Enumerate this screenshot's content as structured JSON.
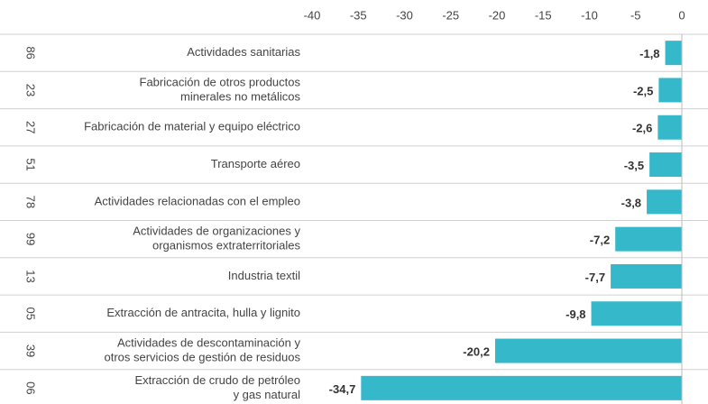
{
  "chart_data": {
    "type": "bar",
    "orientation": "horizontal",
    "codes": [
      "86",
      "23",
      "27",
      "51",
      "78",
      "99",
      "13",
      "05",
      "39",
      "06"
    ],
    "categories": [
      [
        "Actividades sanitarias"
      ],
      [
        "Fabricación de otros productos",
        "minerales no metálicos"
      ],
      [
        "Fabricación de material y equipo eléctrico"
      ],
      [
        "Transporte aéreo"
      ],
      [
        "Actividades relacionadas con el empleo"
      ],
      [
        "Actividades de organizaciones y",
        "organismos extraterritoriales"
      ],
      [
        "Industria textil"
      ],
      [
        "Extracción de antracita, hulla y lignito"
      ],
      [
        "Actividades de descontaminación y",
        "otros servicios de gestión de residuos"
      ],
      [
        "Extracción de crudo de petróleo",
        "y gas natural"
      ]
    ],
    "values": [
      -1.8,
      -2.5,
      -2.6,
      -3.5,
      -3.8,
      -7.2,
      -7.7,
      -9.8,
      -20.2,
      -34.7
    ],
    "value_labels": [
      "-1,8",
      "-2,5",
      "-2,6",
      "-3,5",
      "-3,8",
      "-7,2",
      "-7,7",
      "-9,8",
      "-20,2",
      "-34,7"
    ],
    "xlim": [
      -40,
      0
    ],
    "xticks": [
      -40,
      -35,
      -30,
      -25,
      -20,
      -15,
      -10,
      -5,
      0
    ],
    "color": "#35b8c9"
  }
}
